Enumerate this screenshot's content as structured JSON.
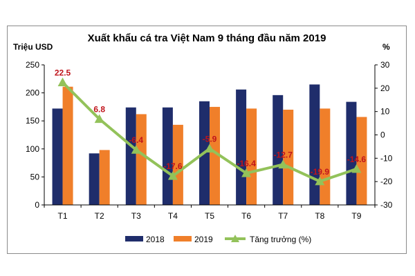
{
  "chart_data": {
    "type": "bar",
    "title": "Xuất khẩu cá tra Việt Nam 9 tháng đầu năm 2019",
    "ylabel_left": "Triệu USD",
    "ylabel_right": "%",
    "categories": [
      "T1",
      "T2",
      "T3",
      "T4",
      "T5",
      "T6",
      "T7",
      "T8",
      "T9"
    ],
    "ylim_left": [
      0,
      250
    ],
    "yticks_left": [
      0,
      50,
      100,
      150,
      200,
      250
    ],
    "ylim_right": [
      -30,
      30
    ],
    "yticks_right": [
      -30,
      -20,
      -10,
      0,
      10,
      20,
      30
    ],
    "series": [
      {
        "name": "2018",
        "type": "bar",
        "axis": "left",
        "color": "#1f2d6b",
        "values": [
          172,
          92,
          174,
          174,
          185,
          206,
          196,
          215,
          184
        ]
      },
      {
        "name": "2019",
        "type": "bar",
        "axis": "left",
        "color": "#f07f2a",
        "values": [
          211,
          98,
          162,
          143,
          175,
          172,
          170,
          172,
          157
        ]
      },
      {
        "name": "Tăng trưởng (%)",
        "type": "line",
        "axis": "right",
        "color": "#93c25a",
        "values": [
          22.5,
          6.8,
          -6.4,
          -17.6,
          -5.9,
          -16.4,
          -12.7,
          -19.9,
          -14.6
        ],
        "labels": [
          "22.5",
          "6.8",
          "-6.4",
          "-17.6",
          "-5.9",
          "-16.4",
          "-12.7",
          "-19.9",
          "-14.6"
        ],
        "label_color": "#c0141b"
      }
    ],
    "legend_position": "bottom",
    "grid": false
  }
}
